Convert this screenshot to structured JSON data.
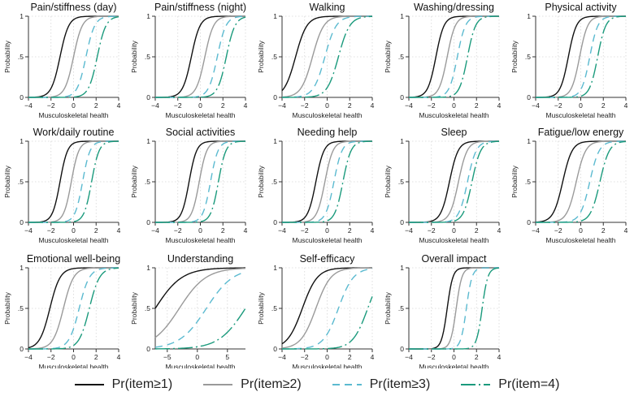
{
  "legend": [
    {
      "label": "Pr(item≥1)",
      "color": "#111111",
      "dash": "solid"
    },
    {
      "label": "Pr(item≥2)",
      "color": "#9a9a9a",
      "dash": "solid"
    },
    {
      "label": "Pr(item≥3)",
      "color": "#5bbad0",
      "dash": "dash"
    },
    {
      "label": "Pr(item=4)",
      "color": "#1a9a7c",
      "dash": "longdash"
    }
  ],
  "chart_data": [
    {
      "type": "line",
      "title": "Pain/stiffness (day)",
      "xlabel": "Musculoskeletal health",
      "ylabel": "Probability",
      "xlim": [
        -4,
        4
      ],
      "xticks": [
        -4,
        -2,
        0,
        2,
        4
      ],
      "ylim": [
        0,
        1
      ],
      "yticks": [
        0,
        0.5,
        1
      ],
      "ytick_labels": [
        "0",
        ".5",
        "1"
      ],
      "series": [
        {
          "name": "Pr(item≥1)",
          "location": -1.2,
          "slope": 2.6
        },
        {
          "name": "Pr(item≥2)",
          "location": 0.0,
          "slope": 2.6
        },
        {
          "name": "Pr(item≥3)",
          "location": 1.1,
          "slope": 2.6
        },
        {
          "name": "Pr(item=4)",
          "location": 2.1,
          "slope": 2.6
        }
      ]
    },
    {
      "type": "line",
      "title": "Pain/stiffness (night)",
      "xlabel": "Musculoskeletal health",
      "ylabel": "Probability",
      "xlim": [
        -4,
        4
      ],
      "xticks": [
        -4,
        -2,
        0,
        2,
        4
      ],
      "ylim": [
        0,
        1
      ],
      "yticks": [
        0,
        0.5,
        1
      ],
      "ytick_labels": [
        "0",
        ".5",
        "1"
      ],
      "series": [
        {
          "name": "Pr(item≥1)",
          "location": -0.8,
          "slope": 2.6
        },
        {
          "name": "Pr(item≥2)",
          "location": 0.4,
          "slope": 2.6
        },
        {
          "name": "Pr(item≥3)",
          "location": 1.5,
          "slope": 2.6
        },
        {
          "name": "Pr(item=4)",
          "location": 2.3,
          "slope": 2.6
        }
      ]
    },
    {
      "type": "line",
      "title": "Walking",
      "xlabel": "Musculoskeletal health",
      "ylabel": "Probability",
      "xlim": [
        -4,
        4
      ],
      "xticks": [
        -4,
        -2,
        0,
        2,
        4
      ],
      "ylim": [
        0,
        1
      ],
      "yticks": [
        0,
        0.5,
        1
      ],
      "ytick_labels": [
        "0",
        ".5",
        "1"
      ],
      "series": [
        {
          "name": "Pr(item≥1)",
          "location": -2.8,
          "slope": 2.0
        },
        {
          "name": "Pr(item≥2)",
          "location": -1.3,
          "slope": 2.0
        },
        {
          "name": "Pr(item≥3)",
          "location": -0.2,
          "slope": 2.0
        },
        {
          "name": "Pr(item=4)",
          "location": 1.0,
          "slope": 2.0
        }
      ]
    },
    {
      "type": "line",
      "title": "Washing/dressing",
      "xlabel": "Musculoskeletal health",
      "ylabel": "Probability",
      "xlim": [
        -4,
        4
      ],
      "xticks": [
        -4,
        -2,
        0,
        2,
        4
      ],
      "ylim": [
        0,
        1
      ],
      "yticks": [
        0,
        0.5,
        1
      ],
      "ytick_labels": [
        "0",
        ".5",
        "1"
      ],
      "series": [
        {
          "name": "Pr(item≥1)",
          "location": -1.6,
          "slope": 2.8
        },
        {
          "name": "Pr(item≥2)",
          "location": -0.6,
          "slope": 2.8
        },
        {
          "name": "Pr(item≥3)",
          "location": 0.3,
          "slope": 2.8
        },
        {
          "name": "Pr(item=4)",
          "location": 1.2,
          "slope": 2.8
        }
      ]
    },
    {
      "type": "line",
      "title": "Physical activity",
      "xlabel": "Musculoskeletal health",
      "ylabel": "Probability",
      "xlim": [
        -4,
        4
      ],
      "xticks": [
        -4,
        -2,
        0,
        2,
        4
      ],
      "ylim": [
        0,
        1
      ],
      "yticks": [
        0,
        0.5,
        1
      ],
      "ytick_labels": [
        "0",
        ".5",
        "1"
      ],
      "series": [
        {
          "name": "Pr(item≥1)",
          "location": -1.1,
          "slope": 2.8
        },
        {
          "name": "Pr(item≥2)",
          "location": -0.1,
          "slope": 2.8
        },
        {
          "name": "Pr(item≥3)",
          "location": 0.8,
          "slope": 2.8
        },
        {
          "name": "Pr(item=4)",
          "location": 1.5,
          "slope": 2.8
        }
      ]
    },
    {
      "type": "line",
      "title": "Work/daily routine",
      "xlabel": "Musculoskeletal health",
      "ylabel": "Probability",
      "xlim": [
        -4,
        4
      ],
      "xticks": [
        -4,
        -2,
        0,
        2,
        4
      ],
      "ylim": [
        0,
        1
      ],
      "yticks": [
        0,
        0.5,
        1
      ],
      "ytick_labels": [
        "0",
        ".5",
        "1"
      ],
      "series": [
        {
          "name": "Pr(item≥1)",
          "location": -1.2,
          "slope": 3.0
        },
        {
          "name": "Pr(item≥2)",
          "location": -0.2,
          "slope": 3.0
        },
        {
          "name": "Pr(item≥3)",
          "location": 0.8,
          "slope": 3.0
        },
        {
          "name": "Pr(item=4)",
          "location": 1.6,
          "slope": 3.0
        }
      ]
    },
    {
      "type": "line",
      "title": "Social activities",
      "xlabel": "Musculoskeletal health",
      "ylabel": "Probability",
      "xlim": [
        -4,
        4
      ],
      "xticks": [
        -4,
        -2,
        0,
        2,
        4
      ],
      "ylim": [
        0,
        1
      ],
      "yticks": [
        0,
        0.5,
        1
      ],
      "ytick_labels": [
        "0",
        ".5",
        "1"
      ],
      "series": [
        {
          "name": "Pr(item≥1)",
          "location": -1.0,
          "slope": 3.0
        },
        {
          "name": "Pr(item≥2)",
          "location": -0.1,
          "slope": 3.0
        },
        {
          "name": "Pr(item≥3)",
          "location": 0.9,
          "slope": 3.0
        },
        {
          "name": "Pr(item=4)",
          "location": 1.6,
          "slope": 3.0
        }
      ]
    },
    {
      "type": "line",
      "title": "Needing help",
      "xlabel": "Musculoskeletal health",
      "ylabel": "Probability",
      "xlim": [
        -4,
        4
      ],
      "xticks": [
        -4,
        -2,
        0,
        2,
        4
      ],
      "ylim": [
        0,
        1
      ],
      "yticks": [
        0,
        0.5,
        1
      ],
      "ytick_labels": [
        "0",
        ".5",
        "1"
      ],
      "series": [
        {
          "name": "Pr(item≥1)",
          "location": -1.0,
          "slope": 2.8
        },
        {
          "name": "Pr(item≥2)",
          "location": -0.2,
          "slope": 2.8
        },
        {
          "name": "Pr(item≥3)",
          "location": 0.6,
          "slope": 2.8
        },
        {
          "name": "Pr(item=4)",
          "location": 1.4,
          "slope": 2.8
        }
      ]
    },
    {
      "type": "line",
      "title": "Sleep",
      "xlabel": "Musculoskeletal health",
      "ylabel": "Probability",
      "xlim": [
        -4,
        4
      ],
      "xticks": [
        -4,
        -2,
        0,
        2,
        4
      ],
      "ylim": [
        0,
        1
      ],
      "yticks": [
        0,
        0.5,
        1
      ],
      "ytick_labels": [
        "0",
        ".5",
        "1"
      ],
      "series": [
        {
          "name": "Pr(item≥1)",
          "location": -0.4,
          "slope": 2.6
        },
        {
          "name": "Pr(item≥2)",
          "location": 0.4,
          "slope": 2.6
        },
        {
          "name": "Pr(item≥3)",
          "location": 1.2,
          "slope": 2.6
        },
        {
          "name": "Pr(item=4)",
          "location": 1.6,
          "slope": 2.6
        }
      ]
    },
    {
      "type": "line",
      "title": "Fatigue/low energy",
      "xlabel": "Musculoskeletal health",
      "ylabel": "Probability",
      "xlim": [
        -4,
        4
      ],
      "xticks": [
        -4,
        -2,
        0,
        2,
        4
      ],
      "ylim": [
        0,
        1
      ],
      "yticks": [
        0,
        0.5,
        1
      ],
      "ytick_labels": [
        "0",
        ".5",
        "1"
      ],
      "series": [
        {
          "name": "Pr(item≥1)",
          "location": -1.6,
          "slope": 2.4
        },
        {
          "name": "Pr(item≥2)",
          "location": -0.4,
          "slope": 2.4
        },
        {
          "name": "Pr(item≥3)",
          "location": 0.8,
          "slope": 2.4
        },
        {
          "name": "Pr(item=4)",
          "location": 1.7,
          "slope": 2.4
        }
      ]
    },
    {
      "type": "line",
      "title": "Emotional well-being",
      "xlabel": "Musculoskeletal health",
      "ylabel": "Probability",
      "xlim": [
        -4,
        4
      ],
      "xticks": [
        -4,
        -2,
        0,
        2,
        4
      ],
      "ylim": [
        0,
        1
      ],
      "yticks": [
        0,
        0.5,
        1
      ],
      "ytick_labels": [
        "0",
        ".5",
        "1"
      ],
      "series": [
        {
          "name": "Pr(item≥1)",
          "location": -2.1,
          "slope": 2.2
        },
        {
          "name": "Pr(item≥2)",
          "location": -0.9,
          "slope": 2.2
        },
        {
          "name": "Pr(item≥3)",
          "location": 0.5,
          "slope": 2.2
        },
        {
          "name": "Pr(item=4)",
          "location": 1.4,
          "slope": 2.2
        }
      ]
    },
    {
      "type": "line",
      "title": "Understanding",
      "xlabel": "Musculoskeletal health",
      "ylabel": "Probability",
      "xlim": [
        -7,
        8
      ],
      "xticks": [
        -5,
        0,
        5
      ],
      "ylim": [
        0,
        1
      ],
      "yticks": [
        0,
        0.5,
        1
      ],
      "ytick_labels": [
        "0",
        ".5",
        "1"
      ],
      "series": [
        {
          "name": "Pr(item≥1)",
          "location": -7.0,
          "slope": 0.45
        },
        {
          "name": "Pr(item≥2)",
          "location": -3.0,
          "slope": 0.45
        },
        {
          "name": "Pr(item≥3)",
          "location": 1.5,
          "slope": 0.45
        },
        {
          "name": "Pr(item=4)",
          "location": 8.0,
          "slope": 0.45
        }
      ]
    },
    {
      "type": "line",
      "title": "Self-efficacy",
      "xlabel": "Musculoskeletal health",
      "ylabel": "Probability",
      "xlim": [
        -4,
        4
      ],
      "xticks": [
        -4,
        -2,
        0,
        2,
        4
      ],
      "ylim": [
        0,
        1
      ],
      "yticks": [
        0,
        0.5,
        1
      ],
      "ytick_labels": [
        "0",
        ".5",
        "1"
      ],
      "series": [
        {
          "name": "Pr(item≥1)",
          "location": -2.2,
          "slope": 1.5
        },
        {
          "name": "Pr(item≥2)",
          "location": -1.0,
          "slope": 1.5
        },
        {
          "name": "Pr(item≥3)",
          "location": 1.0,
          "slope": 1.5
        },
        {
          "name": "Pr(item=4)",
          "location": 3.6,
          "slope": 1.5
        }
      ]
    },
    {
      "type": "line",
      "title": "Overall impact",
      "xlabel": "Musculoskeletal health",
      "ylabel": "Probability",
      "xlim": [
        -4,
        4
      ],
      "xticks": [
        -4,
        -2,
        0,
        2,
        4
      ],
      "ylim": [
        0,
        1
      ],
      "yticks": [
        0,
        0.5,
        1
      ],
      "ytick_labels": [
        "0",
        ".5",
        "1"
      ],
      "series": [
        {
          "name": "Pr(item≥1)",
          "location": -0.6,
          "slope": 4.0
        },
        {
          "name": "Pr(item≥2)",
          "location": 0.2,
          "slope": 4.0
        },
        {
          "name": "Pr(item≥3)",
          "location": 1.1,
          "slope": 4.0
        },
        {
          "name": "Pr(item=4)",
          "location": 2.5,
          "slope": 4.0
        }
      ]
    }
  ]
}
